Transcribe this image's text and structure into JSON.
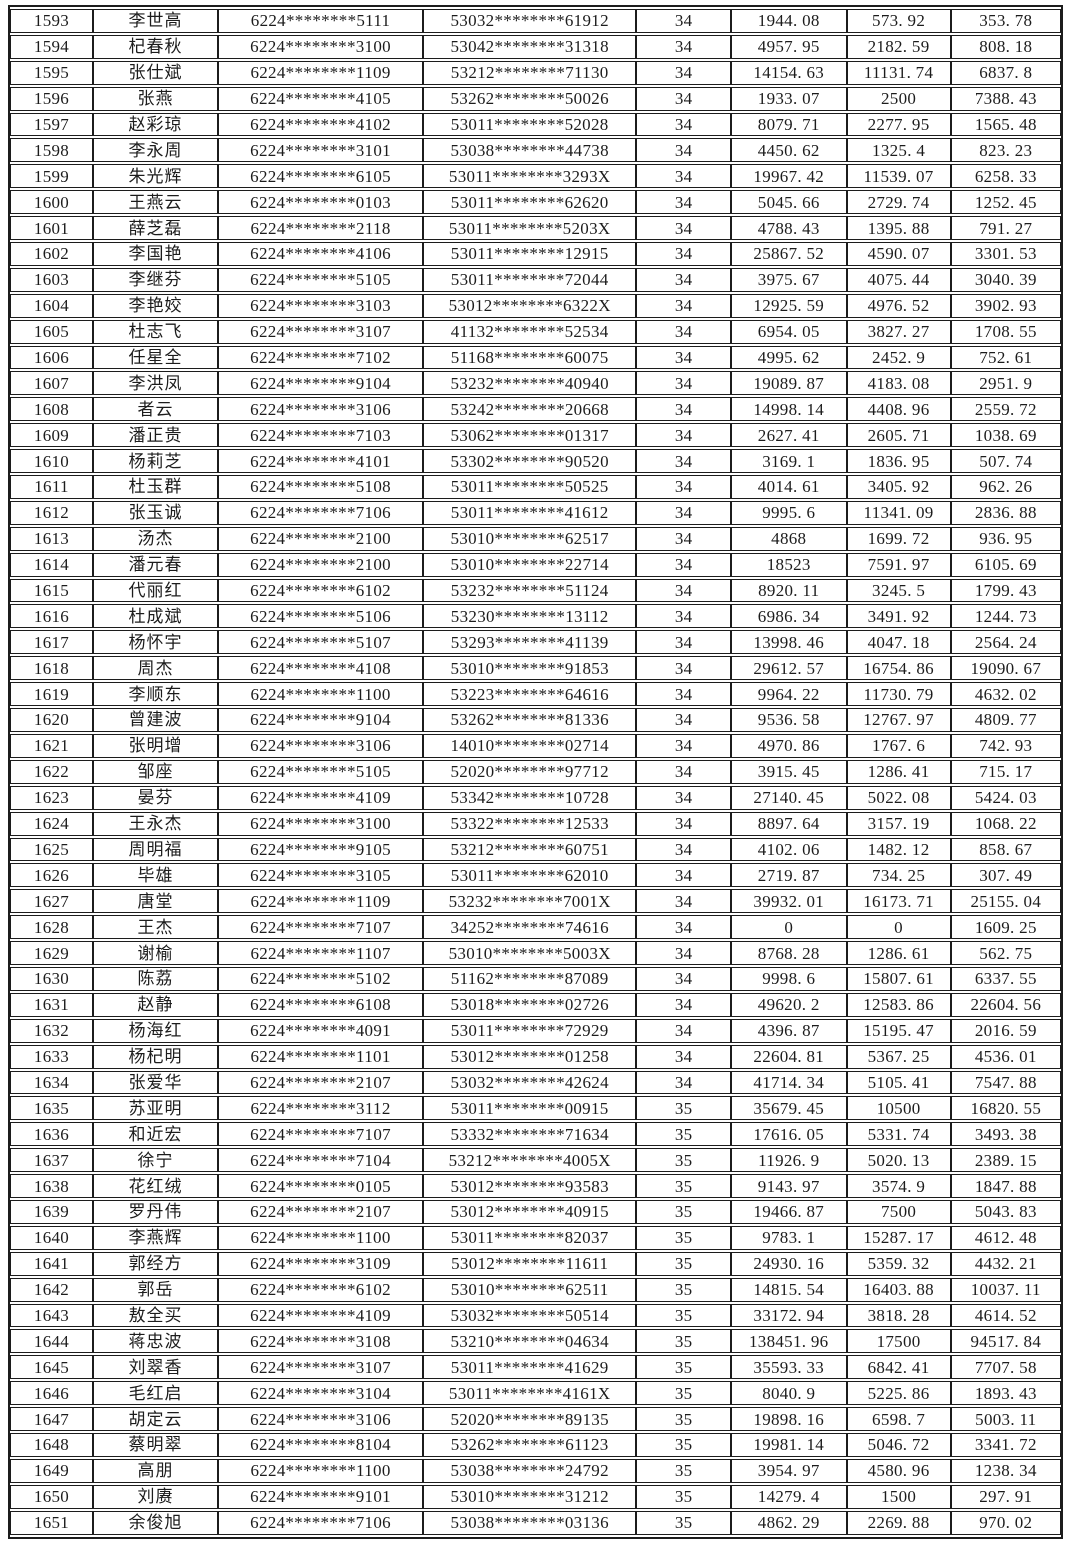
{
  "table": {
    "fields": [
      "row-number",
      "name",
      "bank-card-number",
      "id-number",
      "group-code",
      "amount-1",
      "amount-2",
      "amount-3"
    ],
    "rows": [
      [
        "1593",
        "李世高",
        "6224********5111",
        "53032********61912",
        "34",
        "1944. 08",
        "573. 92",
        "353. 78"
      ],
      [
        "1594",
        "杞春秋",
        "6224********3100",
        "53042********31318",
        "34",
        "4957. 95",
        "2182. 59",
        "808. 18"
      ],
      [
        "1595",
        "张仕斌",
        "6224********1109",
        "53212********71130",
        "34",
        "14154. 63",
        "11131. 74",
        "6837. 8"
      ],
      [
        "1596",
        "张燕",
        "6224********4105",
        "53262********50026",
        "34",
        "1933. 07",
        "2500",
        "7388. 43"
      ],
      [
        "1597",
        "赵彩琼",
        "6224********4102",
        "53011********52028",
        "34",
        "8079. 71",
        "2277. 95",
        "1565. 48"
      ],
      [
        "1598",
        "李永周",
        "6224********3101",
        "53038********44738",
        "34",
        "4450. 62",
        "1325. 4",
        "823. 23"
      ],
      [
        "1599",
        "朱光辉",
        "6224********6105",
        "53011********3293X",
        "34",
        "19967. 42",
        "11539. 07",
        "6258. 33"
      ],
      [
        "1600",
        "王燕云",
        "6224********0103",
        "53011********62620",
        "34",
        "5045. 66",
        "2729. 74",
        "1252. 45"
      ],
      [
        "1601",
        "薛芝磊",
        "6224********2118",
        "53011********5203X",
        "34",
        "4788. 43",
        "1395. 88",
        "791. 27"
      ],
      [
        "1602",
        "李国艳",
        "6224********4106",
        "53011********12915",
        "34",
        "25867. 52",
        "4590. 07",
        "3301. 53"
      ],
      [
        "1603",
        "李继芬",
        "6224********5105",
        "53011********72044",
        "34",
        "3975. 67",
        "4075. 44",
        "3040. 39"
      ],
      [
        "1604",
        "李艳姣",
        "6224********3103",
        "53012********6322X",
        "34",
        "12925. 59",
        "4976. 52",
        "3902. 93"
      ],
      [
        "1605",
        "杜志飞",
        "6224********3107",
        "41132********52534",
        "34",
        "6954. 05",
        "3827. 27",
        "1708. 55"
      ],
      [
        "1606",
        "任星全",
        "6224********7102",
        "51168********60075",
        "34",
        "4995. 62",
        "2452. 9",
        "752. 61"
      ],
      [
        "1607",
        "李洪凤",
        "6224********9104",
        "53232********40940",
        "34",
        "19089. 87",
        "4183. 08",
        "2951. 9"
      ],
      [
        "1608",
        "者云",
        "6224********3106",
        "53242********20668",
        "34",
        "14998. 14",
        "4408. 96",
        "2559. 72"
      ],
      [
        "1609",
        "潘正贵",
        "6224********7103",
        "53062********01317",
        "34",
        "2627. 41",
        "2605. 71",
        "1038. 69"
      ],
      [
        "1610",
        "杨莉芝",
        "6224********4101",
        "53302********90520",
        "34",
        "3169. 1",
        "1836. 95",
        "507. 74"
      ],
      [
        "1611",
        "杜玉群",
        "6224********5108",
        "53011********50525",
        "34",
        "4014. 61",
        "3405. 92",
        "962. 26"
      ],
      [
        "1612",
        "张玉诚",
        "6224********7106",
        "53011********41612",
        "34",
        "9995. 6",
        "11341. 09",
        "2836. 88"
      ],
      [
        "1613",
        "汤杰",
        "6224********2100",
        "53010********62517",
        "34",
        "4868",
        "1699. 72",
        "936. 95"
      ],
      [
        "1614",
        "潘元春",
        "6224********2100",
        "53010********22714",
        "34",
        "18523",
        "7591. 97",
        "6105. 69"
      ],
      [
        "1615",
        "代丽红",
        "6224********6102",
        "53232********51124",
        "34",
        "8920. 11",
        "3245. 5",
        "1799. 43"
      ],
      [
        "1616",
        "杜成斌",
        "6224********5106",
        "53230********13112",
        "34",
        "6986. 34",
        "3491. 92",
        "1244. 73"
      ],
      [
        "1617",
        "杨怀宇",
        "6224********5107",
        "53293********41139",
        "34",
        "13998. 46",
        "4047. 18",
        "2564. 24"
      ],
      [
        "1618",
        "周杰",
        "6224********4108",
        "53010********91853",
        "34",
        "29612. 57",
        "16754. 86",
        "19090. 67"
      ],
      [
        "1619",
        "李顺东",
        "6224********1100",
        "53223********64616",
        "34",
        "9964. 22",
        "11730. 79",
        "4632. 02"
      ],
      [
        "1620",
        "曾建波",
        "6224********9104",
        "53262********81336",
        "34",
        "9536. 58",
        "12767. 97",
        "4809. 77"
      ],
      [
        "1621",
        "张明增",
        "6224********3106",
        "14010********02714",
        "34",
        "4970. 86",
        "1767. 6",
        "742. 93"
      ],
      [
        "1622",
        "邹座",
        "6224********5105",
        "52020********97712",
        "34",
        "3915. 45",
        "1286. 41",
        "715. 17"
      ],
      [
        "1623",
        "晏芬",
        "6224********4109",
        "53342********10728",
        "34",
        "27140. 45",
        "5022. 08",
        "5424. 03"
      ],
      [
        "1624",
        "王永杰",
        "6224********3100",
        "53322********12533",
        "34",
        "8897. 64",
        "3157. 19",
        "1068. 22"
      ],
      [
        "1625",
        "周明福",
        "6224********9105",
        "53212********60751",
        "34",
        "4102. 06",
        "1482. 12",
        "858. 67"
      ],
      [
        "1626",
        "毕雄",
        "6224********3105",
        "53011********62010",
        "34",
        "2719. 87",
        "734. 25",
        "307. 49"
      ],
      [
        "1627",
        "唐堂",
        "6224********1109",
        "53232********7001X",
        "34",
        "39932. 01",
        "16173. 71",
        "25155. 04"
      ],
      [
        "1628",
        "王杰",
        "6224********7107",
        "34252********74616",
        "34",
        "0",
        "0",
        "1609. 25"
      ],
      [
        "1629",
        "谢榆",
        "6224********1107",
        "53010********5003X",
        "34",
        "8768. 28",
        "1286. 61",
        "562. 75"
      ],
      [
        "1630",
        "陈荔",
        "6224********5102",
        "51162********87089",
        "34",
        "9998. 6",
        "15807. 61",
        "6337. 55"
      ],
      [
        "1631",
        "赵静",
        "6224********6108",
        "53018********02726",
        "34",
        "49620. 2",
        "12583. 86",
        "22604. 56"
      ],
      [
        "1632",
        "杨海红",
        "6224********4091",
        "53011********72929",
        "34",
        "4396. 87",
        "15195. 47",
        "2016. 59"
      ],
      [
        "1633",
        "杨杞明",
        "6224********1101",
        "53012********01258",
        "34",
        "22604. 81",
        "5367. 25",
        "4536. 01"
      ],
      [
        "1634",
        "张爱华",
        "6224********2107",
        "53032********42624",
        "34",
        "41714. 34",
        "5105. 41",
        "7547. 88"
      ],
      [
        "1635",
        "苏亚明",
        "6224********3112",
        "53011********00915",
        "35",
        "35679. 45",
        "10500",
        "16820. 55"
      ],
      [
        "1636",
        "和近宏",
        "6224********7107",
        "53332********71634",
        "35",
        "17616. 05",
        "5331. 74",
        "3493. 38"
      ],
      [
        "1637",
        "徐宁",
        "6224********7104",
        "53212********4005X",
        "35",
        "11926. 9",
        "5020. 13",
        "2389. 15"
      ],
      [
        "1638",
        "花红绒",
        "6224********0105",
        "53012********93583",
        "35",
        "9143. 97",
        "3574. 9",
        "1847. 88"
      ],
      [
        "1639",
        "罗丹伟",
        "6224********2107",
        "53012********40915",
        "35",
        "19466. 87",
        "7500",
        "5043. 83"
      ],
      [
        "1640",
        "李燕辉",
        "6224********1100",
        "53011********82037",
        "35",
        "9783. 1",
        "15287. 17",
        "4612. 48"
      ],
      [
        "1641",
        "郭经方",
        "6224********3109",
        "53012********11611",
        "35",
        "24930. 16",
        "5359. 32",
        "4432. 21"
      ],
      [
        "1642",
        "郭岳",
        "6224********6102",
        "53010********62511",
        "35",
        "14815. 54",
        "16403. 88",
        "10037. 11"
      ],
      [
        "1643",
        "敖全买",
        "6224********4109",
        "53032********50514",
        "35",
        "33172. 94",
        "3818. 28",
        "4614. 52"
      ],
      [
        "1644",
        "蒋忠波",
        "6224********3108",
        "53210********04634",
        "35",
        "138451. 96",
        "17500",
        "94517. 84"
      ],
      [
        "1645",
        "刘翠香",
        "6224********3107",
        "53011********41629",
        "35",
        "35593. 33",
        "6842. 41",
        "7707. 58"
      ],
      [
        "1646",
        "毛红启",
        "6224********3104",
        "53011********4161X",
        "35",
        "8040. 9",
        "5225. 86",
        "1893. 43"
      ],
      [
        "1647",
        "胡定云",
        "6224********3106",
        "52020********89135",
        "35",
        "19898. 16",
        "6598. 7",
        "5003. 11"
      ],
      [
        "1648",
        "蔡明翠",
        "6224********8104",
        "53262********61123",
        "35",
        "19981. 14",
        "5046. 72",
        "3341. 72"
      ],
      [
        "1649",
        "高朋",
        "6224********1100",
        "53038********24792",
        "35",
        "3954. 97",
        "4580. 96",
        "1238. 34"
      ],
      [
        "1650",
        "刘赓",
        "6224********9101",
        "53010********31212",
        "35",
        "14279. 4",
        "1500",
        "297. 91"
      ],
      [
        "1651",
        "余俊旭",
        "6224********7106",
        "53038********03136",
        "35",
        "4862. 29",
        "2269. 88",
        "970. 02"
      ]
    ]
  }
}
